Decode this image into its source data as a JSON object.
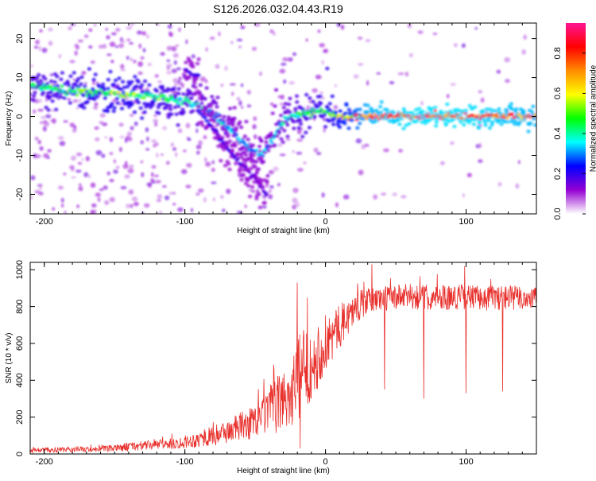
{
  "page": {
    "title": "S126.2026.032.04.43.R19"
  },
  "chart_data": [
    {
      "type": "heatmap",
      "title": "S126.2026.032.04.43.R19",
      "xlabel": "Height of straight line (km)",
      "ylabel": "Frequency (Hz)",
      "xlim": [
        -210,
        150
      ],
      "ylim": [
        -25,
        24
      ],
      "xticks": [
        -200,
        -100,
        0,
        100
      ],
      "yticks": [
        -20,
        -10,
        0,
        10,
        20
      ],
      "grid": false,
      "colorbar": {
        "label": "Normalized spectral amplitude",
        "range": [
          0,
          0.95
        ],
        "ticks": [
          0.0,
          0.2,
          0.4,
          0.6,
          0.8
        ],
        "tick_labels": [
          "0.0",
          "0.2",
          "0.4",
          "0.6",
          "0.8"
        ],
        "colormap": [
          "#ffffff",
          "#9400d3",
          "#0000ff",
          "#00ffff",
          "#00ff00",
          "#ffff00",
          "#ff8c00",
          "#ff0000",
          "#ff1493"
        ]
      },
      "ridges": [
        {
          "name": "main_carrier",
          "x": [
            -210,
            -180,
            -150,
            -120,
            -100,
            -85,
            -75,
            -65,
            -55,
            -45,
            -38,
            -30,
            -20,
            -10,
            0,
            10,
            30,
            60,
            100,
            150
          ],
          "y": [
            8,
            6.5,
            6,
            5,
            4,
            2,
            -1,
            -4,
            -8,
            -10,
            -6,
            -1,
            0.5,
            1,
            1.5,
            0,
            0,
            0,
            0,
            0
          ],
          "amplitude": [
            0.4,
            0.45,
            0.5,
            0.45,
            0.4,
            0.35,
            0.35,
            0.3,
            0.3,
            0.3,
            0.3,
            0.35,
            0.4,
            0.45,
            0.45,
            0.55,
            0.75,
            0.8,
            0.8,
            0.75
          ]
        },
        {
          "name": "lower_branch",
          "x": [
            -90,
            -80,
            -70,
            -60,
            -50,
            -42
          ],
          "y": [
            1,
            -3,
            -8,
            -12,
            -16,
            -20
          ],
          "amplitude": [
            0.25,
            0.2,
            0.2,
            0.15,
            0.15,
            0.15
          ]
        },
        {
          "name": "upper_branch",
          "x": [
            -100,
            -95,
            -90
          ],
          "y": [
            12,
            11,
            10
          ],
          "amplitude": [
            0.2,
            0.2,
            0.2
          ]
        }
      ]
    },
    {
      "type": "line",
      "xlabel": "Height of straight line (km)",
      "ylabel": "SNR (10 * v/v)",
      "xlim": [
        -210,
        150
      ],
      "ylim": [
        0,
        1040
      ],
      "xticks": [
        -200,
        -100,
        0,
        100
      ],
      "yticks": [
        0,
        200,
        400,
        600,
        800,
        1000
      ],
      "grid": false,
      "color": "#e8302c",
      "series": [
        {
          "x": [
            -210,
            -190,
            -170,
            -150,
            -140,
            -130,
            -120,
            -110,
            -100,
            -90,
            -80,
            -70,
            -60,
            -50,
            -45,
            -40,
            -35,
            -30,
            -25,
            -20,
            -18,
            -15,
            -10,
            -5,
            0,
            5,
            10,
            15,
            20,
            25,
            30,
            40,
            50,
            60,
            70,
            80,
            90,
            100,
            110,
            120,
            130,
            140,
            150
          ],
          "y": [
            20,
            22,
            25,
            30,
            40,
            45,
            50,
            55,
            65,
            80,
            100,
            120,
            150,
            170,
            200,
            240,
            260,
            300,
            330,
            370,
            420,
            450,
            500,
            540,
            600,
            640,
            690,
            740,
            780,
            810,
            830,
            845,
            850,
            855,
            850,
            855,
            850,
            855,
            845,
            850,
            850,
            845,
            850
          ],
          "noise_amplitude": [
            15,
            15,
            15,
            18,
            25,
            25,
            25,
            30,
            35,
            45,
            55,
            65,
            80,
            90,
            110,
            130,
            150,
            170,
            200,
            230,
            250,
            230,
            200,
            180,
            160,
            140,
            120,
            100,
            90,
            80,
            70,
            70,
            70,
            70,
            70,
            70,
            70,
            70,
            70,
            70,
            70,
            70,
            70
          ],
          "spikes": [
            {
              "x": -20,
              "y": 930
            },
            {
              "x": -18,
              "y": 30
            },
            {
              "x": 33,
              "y": 1030
            },
            {
              "x": 42,
              "y": 350
            },
            {
              "x": 70,
              "y": 300
            },
            {
              "x": 99,
              "y": 1020
            },
            {
              "x": 100,
              "y": 330
            },
            {
              "x": 126,
              "y": 340
            }
          ]
        }
      ]
    }
  ]
}
